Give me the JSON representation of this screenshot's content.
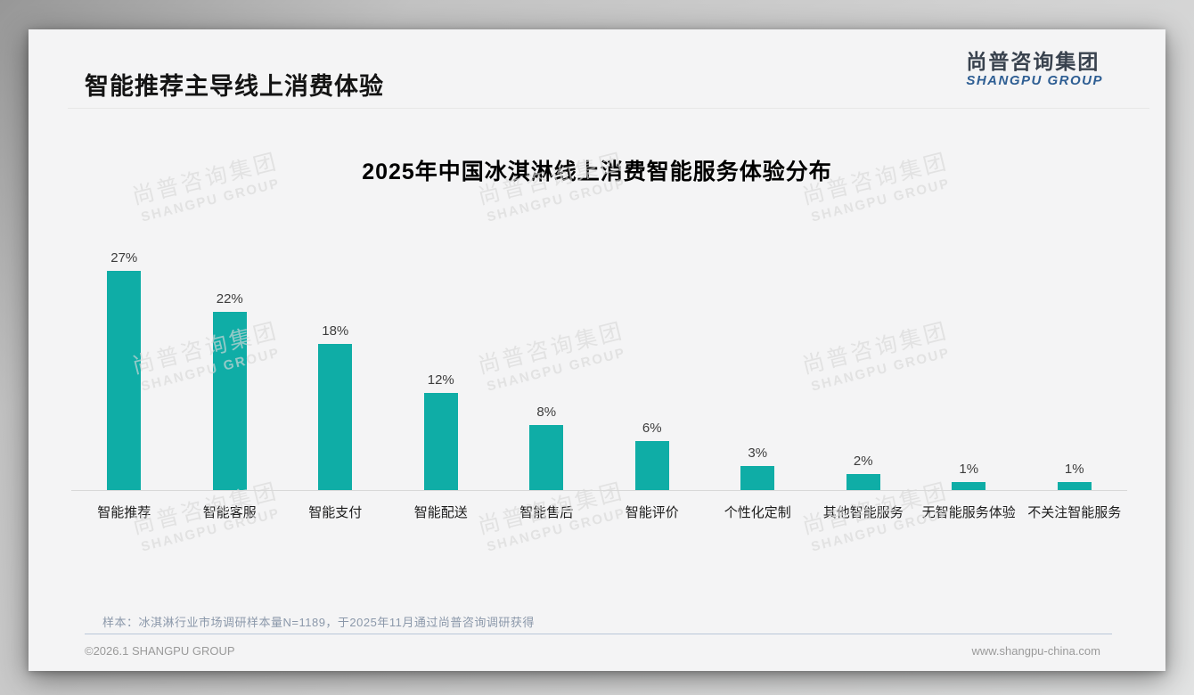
{
  "page": {
    "title": "智能推荐主导线上消费体验",
    "logo": {
      "cn": "尚普咨询集团",
      "en": "SHANGPU GROUP"
    },
    "watermark": {
      "cn": "尚普咨询集团",
      "en": "SHANGPU GROUP"
    },
    "note": "样本：冰淇淋行业市场调研样本量N=1189，于2025年11月通过尚普咨询调研获得",
    "footer": {
      "left": "©2026.1 SHANGPU GROUP",
      "right": "www.shangpu-china.com"
    }
  },
  "chart_data": {
    "type": "bar",
    "title": "2025年中国冰淇淋线上消费智能服务体验分布",
    "categories": [
      "智能推荐",
      "智能客服",
      "智能支付",
      "智能配送",
      "智能售后",
      "智能评价",
      "个性化定制",
      "其他智能服务",
      "无智能服务体验",
      "不关注智能服务"
    ],
    "values": [
      27,
      22,
      18,
      12,
      8,
      6,
      3,
      2,
      1,
      1
    ],
    "value_labels": [
      "27%",
      "22%",
      "18%",
      "12%",
      "8%",
      "6%",
      "3%",
      "2%",
      "1%",
      "1%"
    ],
    "unit": "%",
    "bar_color": "#0fada6",
    "value_label_color": "#3d3d3d",
    "ylim": [
      0,
      30
    ],
    "grid": false,
    "legend": false,
    "xlabel": "",
    "ylabel": ""
  }
}
